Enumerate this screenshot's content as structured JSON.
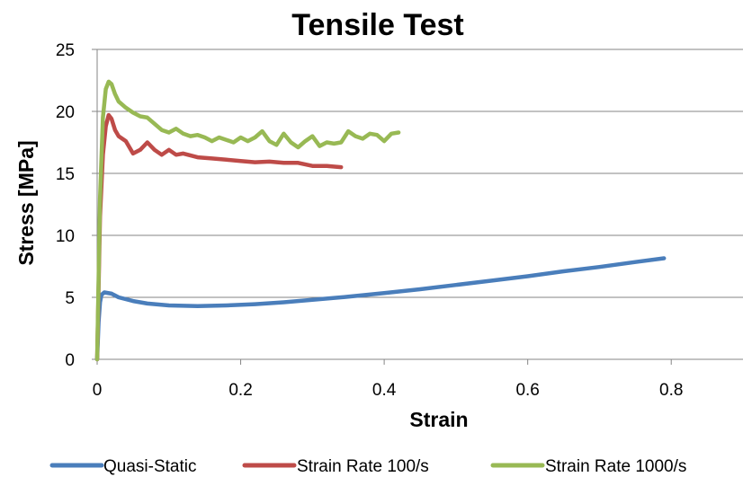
{
  "chart_data": {
    "type": "line",
    "title": "Tensile Test",
    "xlabel": "Strain",
    "ylabel": "Stress [MPa]",
    "xlim": [
      0,
      0.9
    ],
    "ylim": [
      0,
      25
    ],
    "xticks": [
      0,
      0.2,
      0.4,
      0.6,
      0.8
    ],
    "yticks": [
      0,
      5,
      10,
      15,
      20,
      25
    ],
    "xtick_labels": [
      "0",
      "0.2",
      "0.4",
      "0.6",
      "0.8"
    ],
    "ytick_labels": [
      "0",
      "5",
      "10",
      "15",
      "20",
      "25"
    ],
    "grid": "horizontal",
    "legend_position": "bottom",
    "series": [
      {
        "name": "Quasi-Static",
        "color": "#4a7ebb",
        "x": [
          0,
          0.002,
          0.004,
          0.006,
          0.01,
          0.02,
          0.03,
          0.05,
          0.07,
          0.1,
          0.14,
          0.18,
          0.22,
          0.26,
          0.3,
          0.35,
          0.4,
          0.45,
          0.5,
          0.55,
          0.6,
          0.65,
          0.7,
          0.75,
          0.79
        ],
        "y": [
          0,
          3.0,
          4.6,
          5.2,
          5.4,
          5.3,
          5.0,
          4.7,
          4.5,
          4.35,
          4.3,
          4.35,
          4.45,
          4.6,
          4.8,
          5.05,
          5.35,
          5.65,
          6.0,
          6.35,
          6.7,
          7.1,
          7.45,
          7.85,
          8.15
        ]
      },
      {
        "name": "Strain Rate 100/s",
        "color": "#be4b48",
        "x": [
          0,
          0.004,
          0.008,
          0.012,
          0.016,
          0.02,
          0.025,
          0.03,
          0.04,
          0.05,
          0.06,
          0.07,
          0.08,
          0.09,
          0.1,
          0.11,
          0.12,
          0.14,
          0.16,
          0.18,
          0.2,
          0.22,
          0.24,
          0.26,
          0.28,
          0.3,
          0.32,
          0.34
        ],
        "y": [
          0,
          11.5,
          16.5,
          18.8,
          19.7,
          19.4,
          18.5,
          18.0,
          17.6,
          16.6,
          16.9,
          17.5,
          16.9,
          16.5,
          16.9,
          16.5,
          16.6,
          16.3,
          16.2,
          16.1,
          16.0,
          15.9,
          15.95,
          15.85,
          15.85,
          15.6,
          15.6,
          15.5
        ]
      },
      {
        "name": "Strain Rate 1000/s",
        "color": "#98b954",
        "x": [
          0,
          0.004,
          0.008,
          0.012,
          0.016,
          0.02,
          0.025,
          0.03,
          0.04,
          0.05,
          0.06,
          0.07,
          0.08,
          0.09,
          0.1,
          0.11,
          0.12,
          0.13,
          0.14,
          0.15,
          0.16,
          0.17,
          0.18,
          0.19,
          0.2,
          0.21,
          0.22,
          0.23,
          0.24,
          0.25,
          0.26,
          0.27,
          0.28,
          0.29,
          0.3,
          0.31,
          0.32,
          0.33,
          0.34,
          0.35,
          0.36,
          0.37,
          0.38,
          0.39,
          0.4,
          0.41,
          0.42
        ],
        "y": [
          0,
          13.0,
          19.5,
          21.8,
          22.4,
          22.2,
          21.4,
          20.8,
          20.3,
          19.9,
          19.6,
          19.5,
          19.0,
          18.5,
          18.3,
          18.6,
          18.2,
          18.0,
          18.1,
          17.9,
          17.6,
          17.9,
          17.7,
          17.5,
          17.9,
          17.6,
          17.9,
          18.4,
          17.6,
          17.3,
          18.2,
          17.5,
          17.1,
          17.6,
          18.0,
          17.2,
          17.5,
          17.4,
          17.5,
          18.4,
          18.0,
          17.8,
          18.2,
          18.1,
          17.6,
          18.2,
          18.3
        ]
      }
    ]
  }
}
